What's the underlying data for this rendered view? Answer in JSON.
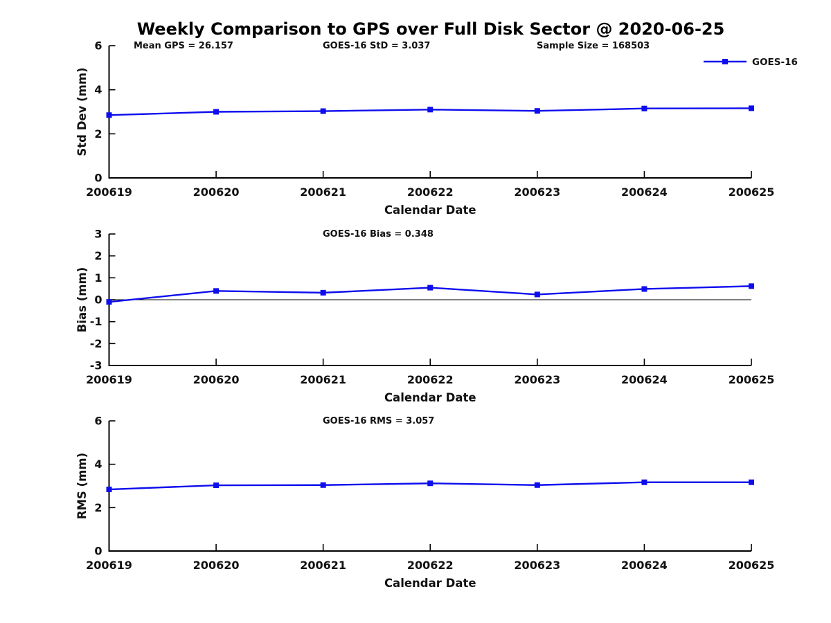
{
  "title": "Weekly Comparison to GPS over Full Disk Sector @ 2020-06-25",
  "x_axis_label": "Calendar Date",
  "categories": [
    "200619",
    "200620",
    "200621",
    "200622",
    "200623",
    "200624",
    "200625"
  ],
  "legend": {
    "label": "GOES-16"
  },
  "colors": {
    "series": "#0d0dee",
    "axis": "#000000",
    "zero_line": "#000000"
  },
  "chart_data": [
    {
      "type": "line",
      "id": "std-dev",
      "annotations": [
        "Mean GPS = 26.157",
        "GOES-16 StD = 3.037",
        "Sample Size = 168503"
      ],
      "ylabel": "Std Dev (mm)",
      "xlabel": "Calendar Date",
      "ylim": [
        0,
        6
      ],
      "yticks": [
        0,
        2,
        4,
        6
      ],
      "zero_line": false,
      "legend_shown": true,
      "series": [
        {
          "name": "GOES-16",
          "values": [
            2.85,
            3.0,
            3.03,
            3.1,
            3.04,
            3.15,
            3.16
          ]
        }
      ]
    },
    {
      "type": "line",
      "id": "bias",
      "annotations": [
        "GOES-16 Bias  = 0.348"
      ],
      "ylabel": "Bias (mm)",
      "xlabel": "Calendar Date",
      "ylim": [
        -3,
        3
      ],
      "yticks": [
        -3,
        -2,
        -1,
        0,
        1,
        2,
        3
      ],
      "zero_line": true,
      "legend_shown": false,
      "series": [
        {
          "name": "GOES-16",
          "values": [
            -0.1,
            0.4,
            0.32,
            0.55,
            0.24,
            0.49,
            0.62
          ]
        }
      ]
    },
    {
      "type": "line",
      "id": "rms",
      "annotations": [
        "GOES-16 RMS = 3.057"
      ],
      "ylabel": "RMS (mm)",
      "xlabel": "Calendar Date",
      "ylim": [
        0,
        6
      ],
      "yticks": [
        0,
        2,
        4,
        6
      ],
      "zero_line": false,
      "legend_shown": false,
      "series": [
        {
          "name": "GOES-16",
          "values": [
            2.84,
            3.03,
            3.04,
            3.12,
            3.04,
            3.17,
            3.17
          ]
        }
      ]
    }
  ]
}
